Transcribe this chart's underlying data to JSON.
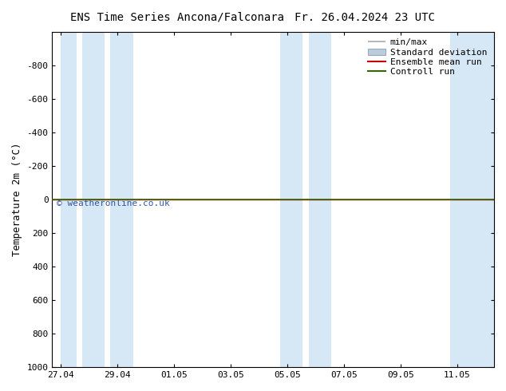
{
  "title_left": "ENS Time Series Ancona/Falconara",
  "title_right": "Fr. 26.04.2024 23 UTC",
  "ylabel": "Temperature 2m (°C)",
  "watermark": "© weatheronline.co.uk",
  "ylim_top": -1000,
  "ylim_bottom": 1000,
  "yticks": [
    -800,
    -600,
    -400,
    -200,
    0,
    200,
    400,
    600,
    800,
    1000
  ],
  "xtick_labels": [
    "27.04",
    "29.04",
    "01.05",
    "03.05",
    "05.05",
    "07.05",
    "09.05",
    "11.05"
  ],
  "xtick_positions": [
    0,
    2,
    4,
    6,
    8,
    10,
    12,
    14
  ],
  "xlim_left": -0.3,
  "xlim_right": 15.3,
  "band_color": "#d6e8f5",
  "shaded_bands": [
    [
      0.0,
      0.55
    ],
    [
      0.75,
      1.55
    ],
    [
      1.75,
      2.55
    ],
    [
      7.75,
      8.55
    ],
    [
      8.75,
      9.55
    ],
    [
      13.75,
      15.3
    ]
  ],
  "control_run_color": "#336600",
  "ensemble_mean_color": "#cc0000",
  "bg_color": "#ffffff",
  "title_fontsize": 10,
  "label_fontsize": 9,
  "tick_fontsize": 8,
  "watermark_color": "#3355aa",
  "legend_fontsize": 8,
  "min_max_color": "#aaaaaa",
  "std_dev_color": "#bbccdd"
}
